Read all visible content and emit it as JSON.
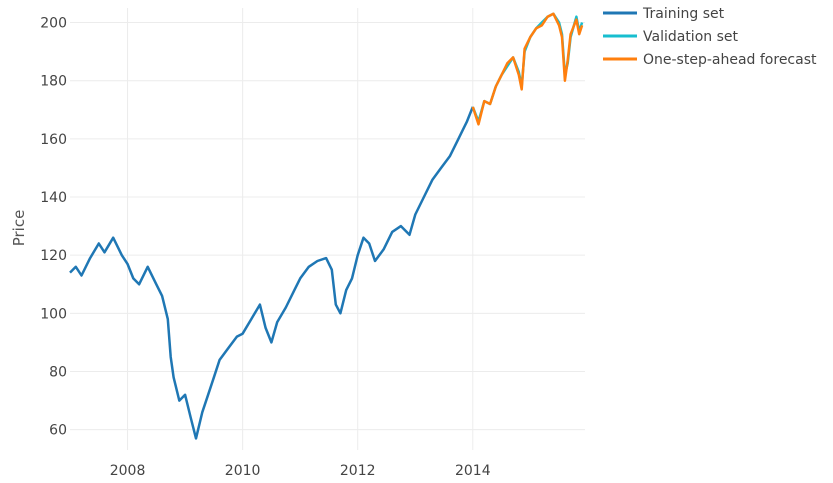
{
  "chart_data": {
    "type": "line",
    "title": "",
    "xlabel": "",
    "ylabel": "Price",
    "xlim": [
      2007.0,
      2015.95
    ],
    "ylim": [
      53,
      205
    ],
    "x_ticks": [
      2008,
      2010,
      2012,
      2014
    ],
    "x_tick_labels": [
      "2008",
      "2010",
      "2012",
      "2014"
    ],
    "y_ticks": [
      60,
      80,
      100,
      120,
      140,
      160,
      180,
      200
    ],
    "y_tick_labels": [
      "60",
      "80",
      "100",
      "120",
      "140",
      "160",
      "180",
      "200"
    ],
    "grid": true,
    "legend": {
      "position": "top-right"
    },
    "series": [
      {
        "name": "Training set",
        "color": "#1f77b4",
        "x": [
          2007.0,
          2007.1,
          2007.2,
          2007.35,
          2007.5,
          2007.6,
          2007.75,
          2007.9,
          2008.0,
          2008.1,
          2008.2,
          2008.35,
          2008.5,
          2008.6,
          2008.7,
          2008.75,
          2008.8,
          2008.9,
          2009.0,
          2009.1,
          2009.19,
          2009.3,
          2009.4,
          2009.5,
          2009.6,
          2009.75,
          2009.9,
          2010.0,
          2010.15,
          2010.3,
          2010.4,
          2010.5,
          2010.6,
          2010.75,
          2010.9,
          2011.0,
          2011.15,
          2011.3,
          2011.45,
          2011.55,
          2011.62,
          2011.7,
          2011.8,
          2011.9,
          2012.0,
          2012.1,
          2012.2,
          2012.3,
          2012.45,
          2012.6,
          2012.75,
          2012.9,
          2013.0,
          2013.15,
          2013.3,
          2013.45,
          2013.6,
          2013.75,
          2013.9,
          2014.0
        ],
        "y": [
          114,
          116,
          113,
          119,
          124,
          121,
          126,
          120,
          117,
          112,
          110,
          116,
          110,
          106,
          98,
          85,
          78,
          70,
          72,
          64,
          57,
          66,
          72,
          78,
          84,
          88,
          92,
          93,
          98,
          103,
          95,
          90,
          97,
          102,
          108,
          112,
          116,
          118,
          119,
          115,
          103,
          100,
          108,
          112,
          120,
          126,
          124,
          118,
          122,
          128,
          130,
          127,
          134,
          140,
          146,
          150,
          154,
          160,
          166,
          171
        ]
      },
      {
        "name": "Validation set",
        "color": "#17becf",
        "x": [
          2014.0,
          2014.1,
          2014.2,
          2014.3,
          2014.4,
          2014.5,
          2014.6,
          2014.7,
          2014.8,
          2014.85,
          2014.9,
          2015.0,
          2015.1,
          2015.2,
          2015.3,
          2015.4,
          2015.5,
          2015.55,
          2015.6,
          2015.65,
          2015.7,
          2015.8,
          2015.85,
          2015.9
        ],
        "y": [
          171,
          166,
          173,
          172,
          178,
          182,
          185,
          188,
          183,
          178,
          190,
          195,
          198,
          200,
          202,
          203,
          200,
          196,
          182,
          186,
          195,
          202,
          197,
          200
        ]
      },
      {
        "name": "One-step-ahead forecast",
        "color": "#ff7f0e",
        "x": [
          2014.0,
          2014.1,
          2014.2,
          2014.3,
          2014.4,
          2014.5,
          2014.6,
          2014.7,
          2014.8,
          2014.85,
          2014.9,
          2015.0,
          2015.1,
          2015.2,
          2015.3,
          2015.4,
          2015.5,
          2015.55,
          2015.6,
          2015.65,
          2015.7,
          2015.8,
          2015.85,
          2015.9
        ],
        "y": [
          171,
          165,
          173,
          172,
          178,
          182,
          186,
          188,
          182,
          177,
          191,
          195,
          198,
          199,
          202,
          203,
          199,
          195,
          180,
          187,
          196,
          201,
          196,
          199
        ]
      }
    ]
  }
}
